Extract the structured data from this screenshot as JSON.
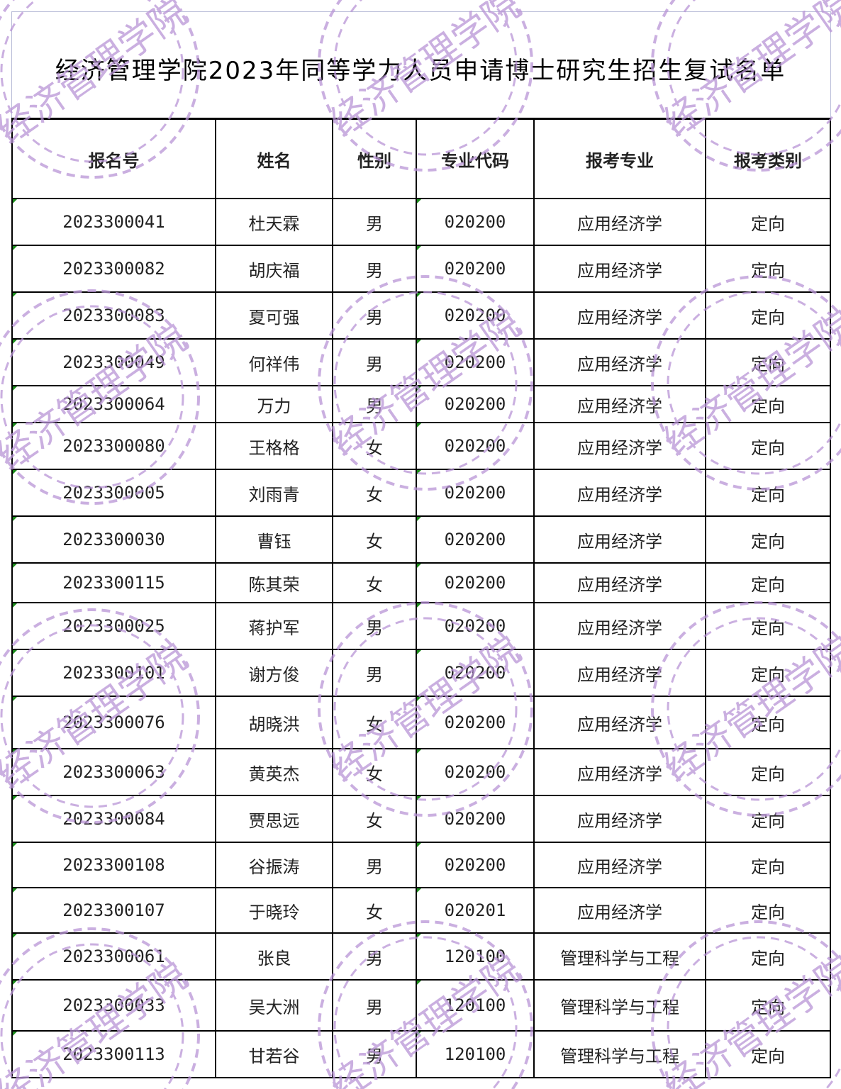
{
  "title": "经济管理学院2023年同等学力人员申请博士研究生招生复试名单",
  "watermark_text": "经济管理学院",
  "watermark_color": "#b995d6",
  "columns": [
    "报名号",
    "姓名",
    "性别",
    "专业代码",
    "报考专业",
    "报考类别"
  ],
  "rows": [
    [
      "2023300041",
      "杜天霖",
      "男",
      "020200",
      "应用经济学",
      "定向"
    ],
    [
      "2023300082",
      "胡庆福",
      "男",
      "020200",
      "应用经济学",
      "定向"
    ],
    [
      "2023300083",
      "夏可强",
      "男",
      "020200",
      "应用经济学",
      "定向"
    ],
    [
      "2023300049",
      "何祥伟",
      "男",
      "020200",
      "应用经济学",
      "定向"
    ],
    [
      "2023300064",
      "万力",
      "男",
      "020200",
      "应用经济学",
      "定向"
    ],
    [
      "2023300080",
      "王格格",
      "女",
      "020200",
      "应用经济学",
      "定向"
    ],
    [
      "2023300005",
      "刘雨青",
      "女",
      "020200",
      "应用经济学",
      "定向"
    ],
    [
      "2023300030",
      "曹钰",
      "女",
      "020200",
      "应用经济学",
      "定向"
    ],
    [
      "2023300115",
      "陈其荣",
      "女",
      "020200",
      "应用经济学",
      "定向"
    ],
    [
      "2023300025",
      "蒋护军",
      "男",
      "020200",
      "应用经济学",
      "定向"
    ],
    [
      "2023300101",
      "谢方俊",
      "男",
      "020200",
      "应用经济学",
      "定向"
    ],
    [
      "2023300076",
      "胡晓洪",
      "女",
      "020200",
      "应用经济学",
      "定向"
    ],
    [
      "2023300063",
      "黄英杰",
      "女",
      "020200",
      "应用经济学",
      "定向"
    ],
    [
      "2023300084",
      "贾思远",
      "女",
      "020200",
      "应用经济学",
      "定向"
    ],
    [
      "2023300108",
      "谷振涛",
      "男",
      "020200",
      "应用经济学",
      "定向"
    ],
    [
      "2023300107",
      "于晓玲",
      "女",
      "020201",
      "应用经济学",
      "定向"
    ],
    [
      "2023300061",
      "张良",
      "男",
      "120100",
      "管理科学与工程",
      "定向"
    ],
    [
      "2023300033",
      "吴大洲",
      "男",
      "120100",
      "管理科学与工程",
      "定向"
    ],
    [
      "2023300113",
      "甘若谷",
      "男",
      "120100",
      "管理科学与工程",
      "定向"
    ]
  ]
}
